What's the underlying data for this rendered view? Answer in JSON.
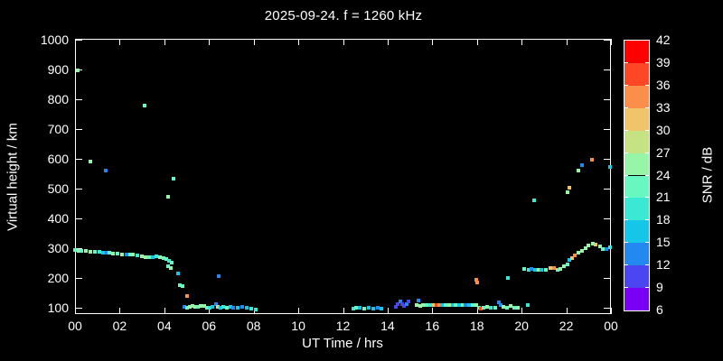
{
  "colors": {
    "background": "#000000",
    "foreground": "#ffffff"
  },
  "chart_data": {
    "type": "scatter",
    "title": "2025-09-24. f = 1260 kHz",
    "xlabel": "UT Time / hrs",
    "ylabel": "Virtual height / km",
    "grid": false,
    "x_range_hours": [
      0,
      24
    ],
    "x_tick_hours": [
      0,
      2,
      4,
      6,
      8,
      10,
      12,
      14,
      16,
      18,
      20,
      22,
      24
    ],
    "x_tick_labels": [
      "00",
      "02",
      "04",
      "06",
      "08",
      "10",
      "12",
      "14",
      "16",
      "18",
      "20",
      "22",
      "00"
    ],
    "y_ticks_km": [
      100,
      200,
      300,
      400,
      500,
      600,
      700,
      800,
      900,
      1000
    ],
    "y_tick_range_km": [
      100,
      1000
    ],
    "colorbar": {
      "label": "SNR / dB",
      "tick_values": [
        6,
        9,
        12,
        15,
        18,
        21,
        24,
        27,
        30,
        33,
        36,
        39,
        42
      ],
      "segments": [
        {
          "from": 6,
          "to": 9,
          "color": "#7A00F5"
        },
        {
          "from": 9,
          "to": 12,
          "color": "#4A46F2"
        },
        {
          "from": 12,
          "to": 15,
          "color": "#2388F0"
        },
        {
          "from": 15,
          "to": 18,
          "color": "#15C6E8"
        },
        {
          "from": 18,
          "to": 21,
          "color": "#3BE8D3"
        },
        {
          "from": 21,
          "to": 24,
          "color": "#68F7C0"
        },
        {
          "from": 24,
          "to": 27,
          "color": "#97F5A8"
        },
        {
          "from": 27,
          "to": 30,
          "color": "#C6E383"
        },
        {
          "from": 30,
          "to": 33,
          "color": "#F0C468"
        },
        {
          "from": 33,
          "to": 36,
          "color": "#FC8E4C"
        },
        {
          "from": 36,
          "to": 39,
          "color": "#FF4726"
        },
        {
          "from": 39,
          "to": 42,
          "color": "#FF0000"
        }
      ]
    },
    "points_format": [
      "ut_hours",
      "virtual_height_km",
      "snr_db"
    ],
    "points": [
      [
        0.0,
        293,
        22
      ],
      [
        0.15,
        292,
        25
      ],
      [
        0.3,
        292,
        22
      ],
      [
        0.5,
        291,
        25
      ],
      [
        0.7,
        289,
        25
      ],
      [
        0.9,
        288,
        22
      ],
      [
        1.1,
        287,
        19
      ],
      [
        1.25,
        286,
        16
      ],
      [
        1.4,
        284,
        13
      ],
      [
        1.55,
        285,
        22
      ],
      [
        1.7,
        282,
        25
      ],
      [
        1.9,
        281,
        22
      ],
      [
        2.1,
        280,
        25
      ],
      [
        2.3,
        279,
        13
      ],
      [
        2.45,
        279,
        22
      ],
      [
        2.6,
        278,
        25
      ],
      [
        2.8,
        276,
        19
      ],
      [
        3.0,
        272,
        25
      ],
      [
        3.15,
        270,
        25
      ],
      [
        3.3,
        269,
        22
      ],
      [
        3.5,
        271,
        16
      ],
      [
        3.65,
        272,
        19
      ],
      [
        3.8,
        271,
        25
      ],
      [
        3.95,
        268,
        22
      ],
      [
        4.1,
        263,
        22
      ],
      [
        4.22,
        258,
        19
      ],
      [
        4.32,
        252,
        22
      ],
      [
        4.18,
        240,
        22
      ],
      [
        4.28,
        234,
        25
      ],
      [
        4.62,
        215,
        16
      ],
      [
        4.7,
        176,
        22
      ],
      [
        4.82,
        172,
        22
      ],
      [
        5.02,
        139,
        34
      ],
      [
        0.12,
        898,
        25
      ],
      [
        0.69,
        591,
        26
      ],
      [
        1.38,
        561,
        13
      ],
      [
        3.12,
        779,
        22
      ],
      [
        4.18,
        473,
        25
      ],
      [
        4.42,
        533,
        22
      ],
      [
        6.45,
        206,
        13
      ],
      [
        4.9,
        102,
        13
      ],
      [
        5.02,
        100,
        22
      ],
      [
        5.15,
        104,
        25
      ],
      [
        5.28,
        106,
        25
      ],
      [
        5.4,
        104,
        25
      ],
      [
        5.52,
        103,
        22
      ],
      [
        5.64,
        106,
        25
      ],
      [
        5.78,
        105,
        25
      ],
      [
        5.9,
        101,
        22
      ],
      [
        6.02,
        100,
        19
      ],
      [
        6.14,
        102,
        16
      ],
      [
        6.3,
        112,
        13
      ],
      [
        6.38,
        103,
        28
      ],
      [
        6.52,
        100,
        16
      ],
      [
        6.65,
        102,
        19
      ],
      [
        6.8,
        100,
        22
      ],
      [
        6.95,
        102,
        16
      ],
      [
        7.1,
        100,
        13
      ],
      [
        7.3,
        101,
        16
      ],
      [
        7.5,
        102,
        13
      ],
      [
        7.7,
        100,
        16
      ],
      [
        7.9,
        96,
        19
      ],
      [
        8.1,
        95,
        19
      ],
      [
        12.45,
        96,
        19
      ],
      [
        12.6,
        100,
        22
      ],
      [
        12.75,
        101,
        16
      ],
      [
        12.95,
        98,
        22
      ],
      [
        13.15,
        100,
        16
      ],
      [
        13.35,
        98,
        16
      ],
      [
        13.55,
        100,
        13
      ],
      [
        13.7,
        98,
        16
      ],
      [
        14.35,
        104,
        10
      ],
      [
        14.45,
        112,
        10
      ],
      [
        14.55,
        121,
        13
      ],
      [
        14.65,
        113,
        10
      ],
      [
        14.75,
        105,
        10
      ],
      [
        14.85,
        113,
        13
      ],
      [
        14.95,
        121,
        10
      ],
      [
        15.36,
        124,
        13
      ],
      [
        15.3,
        109,
        25
      ],
      [
        15.45,
        107,
        25
      ],
      [
        15.6,
        108,
        25
      ],
      [
        15.75,
        109,
        22
      ],
      [
        15.9,
        108,
        19
      ],
      [
        16.05,
        108,
        31
      ],
      [
        16.18,
        108,
        37
      ],
      [
        16.3,
        108,
        34
      ],
      [
        16.45,
        108,
        16
      ],
      [
        16.6,
        108,
        22
      ],
      [
        16.75,
        108,
        25
      ],
      [
        16.9,
        108,
        16
      ],
      [
        17.05,
        108,
        22
      ],
      [
        17.2,
        108,
        16
      ],
      [
        17.35,
        108,
        22
      ],
      [
        17.5,
        108,
        13
      ],
      [
        17.65,
        108,
        16
      ],
      [
        17.8,
        109,
        22
      ],
      [
        17.95,
        110,
        25
      ],
      [
        18.1,
        100,
        22
      ],
      [
        18.16,
        97,
        37
      ],
      [
        18.3,
        99,
        22
      ],
      [
        18.45,
        102,
        25
      ],
      [
        18.6,
        100,
        19
      ],
      [
        18.8,
        99,
        22
      ],
      [
        19.0,
        117,
        13
      ],
      [
        19.05,
        110,
        13
      ],
      [
        19.2,
        103,
        25
      ],
      [
        19.35,
        100,
        22
      ],
      [
        19.5,
        105,
        25
      ],
      [
        19.68,
        101,
        22
      ],
      [
        19.85,
        99,
        25
      ],
      [
        20.27,
        109,
        19
      ],
      [
        17.95,
        194,
        34
      ],
      [
        18.0,
        184,
        34
      ],
      [
        19.38,
        201,
        19
      ],
      [
        20.1,
        230,
        22
      ],
      [
        20.3,
        227,
        19
      ],
      [
        20.45,
        230,
        13
      ],
      [
        20.6,
        227,
        16
      ],
      [
        20.75,
        228,
        25
      ],
      [
        20.9,
        228,
        16
      ],
      [
        21.1,
        228,
        22
      ],
      [
        21.3,
        233,
        31
      ],
      [
        21.45,
        233,
        34
      ],
      [
        21.6,
        227,
        22
      ],
      [
        21.75,
        230,
        25
      ],
      [
        21.9,
        239,
        25
      ],
      [
        22.05,
        246,
        22
      ],
      [
        22.15,
        260,
        16
      ],
      [
        22.25,
        267,
        31
      ],
      [
        22.4,
        276,
        34
      ],
      [
        22.55,
        285,
        25
      ],
      [
        22.7,
        291,
        25
      ],
      [
        22.85,
        300,
        25
      ],
      [
        23.0,
        309,
        25
      ],
      [
        23.2,
        315,
        25
      ],
      [
        23.32,
        312,
        31
      ],
      [
        23.5,
        306,
        25
      ],
      [
        23.65,
        297,
        22
      ],
      [
        23.8,
        297,
        13
      ],
      [
        23.95,
        303,
        19
      ],
      [
        20.55,
        461,
        19
      ],
      [
        22.05,
        488,
        25
      ],
      [
        22.14,
        503,
        31
      ],
      [
        22.54,
        561,
        25
      ],
      [
        22.7,
        579,
        13
      ],
      [
        23.15,
        597,
        34
      ],
      [
        23.96,
        573,
        16
      ]
    ]
  }
}
